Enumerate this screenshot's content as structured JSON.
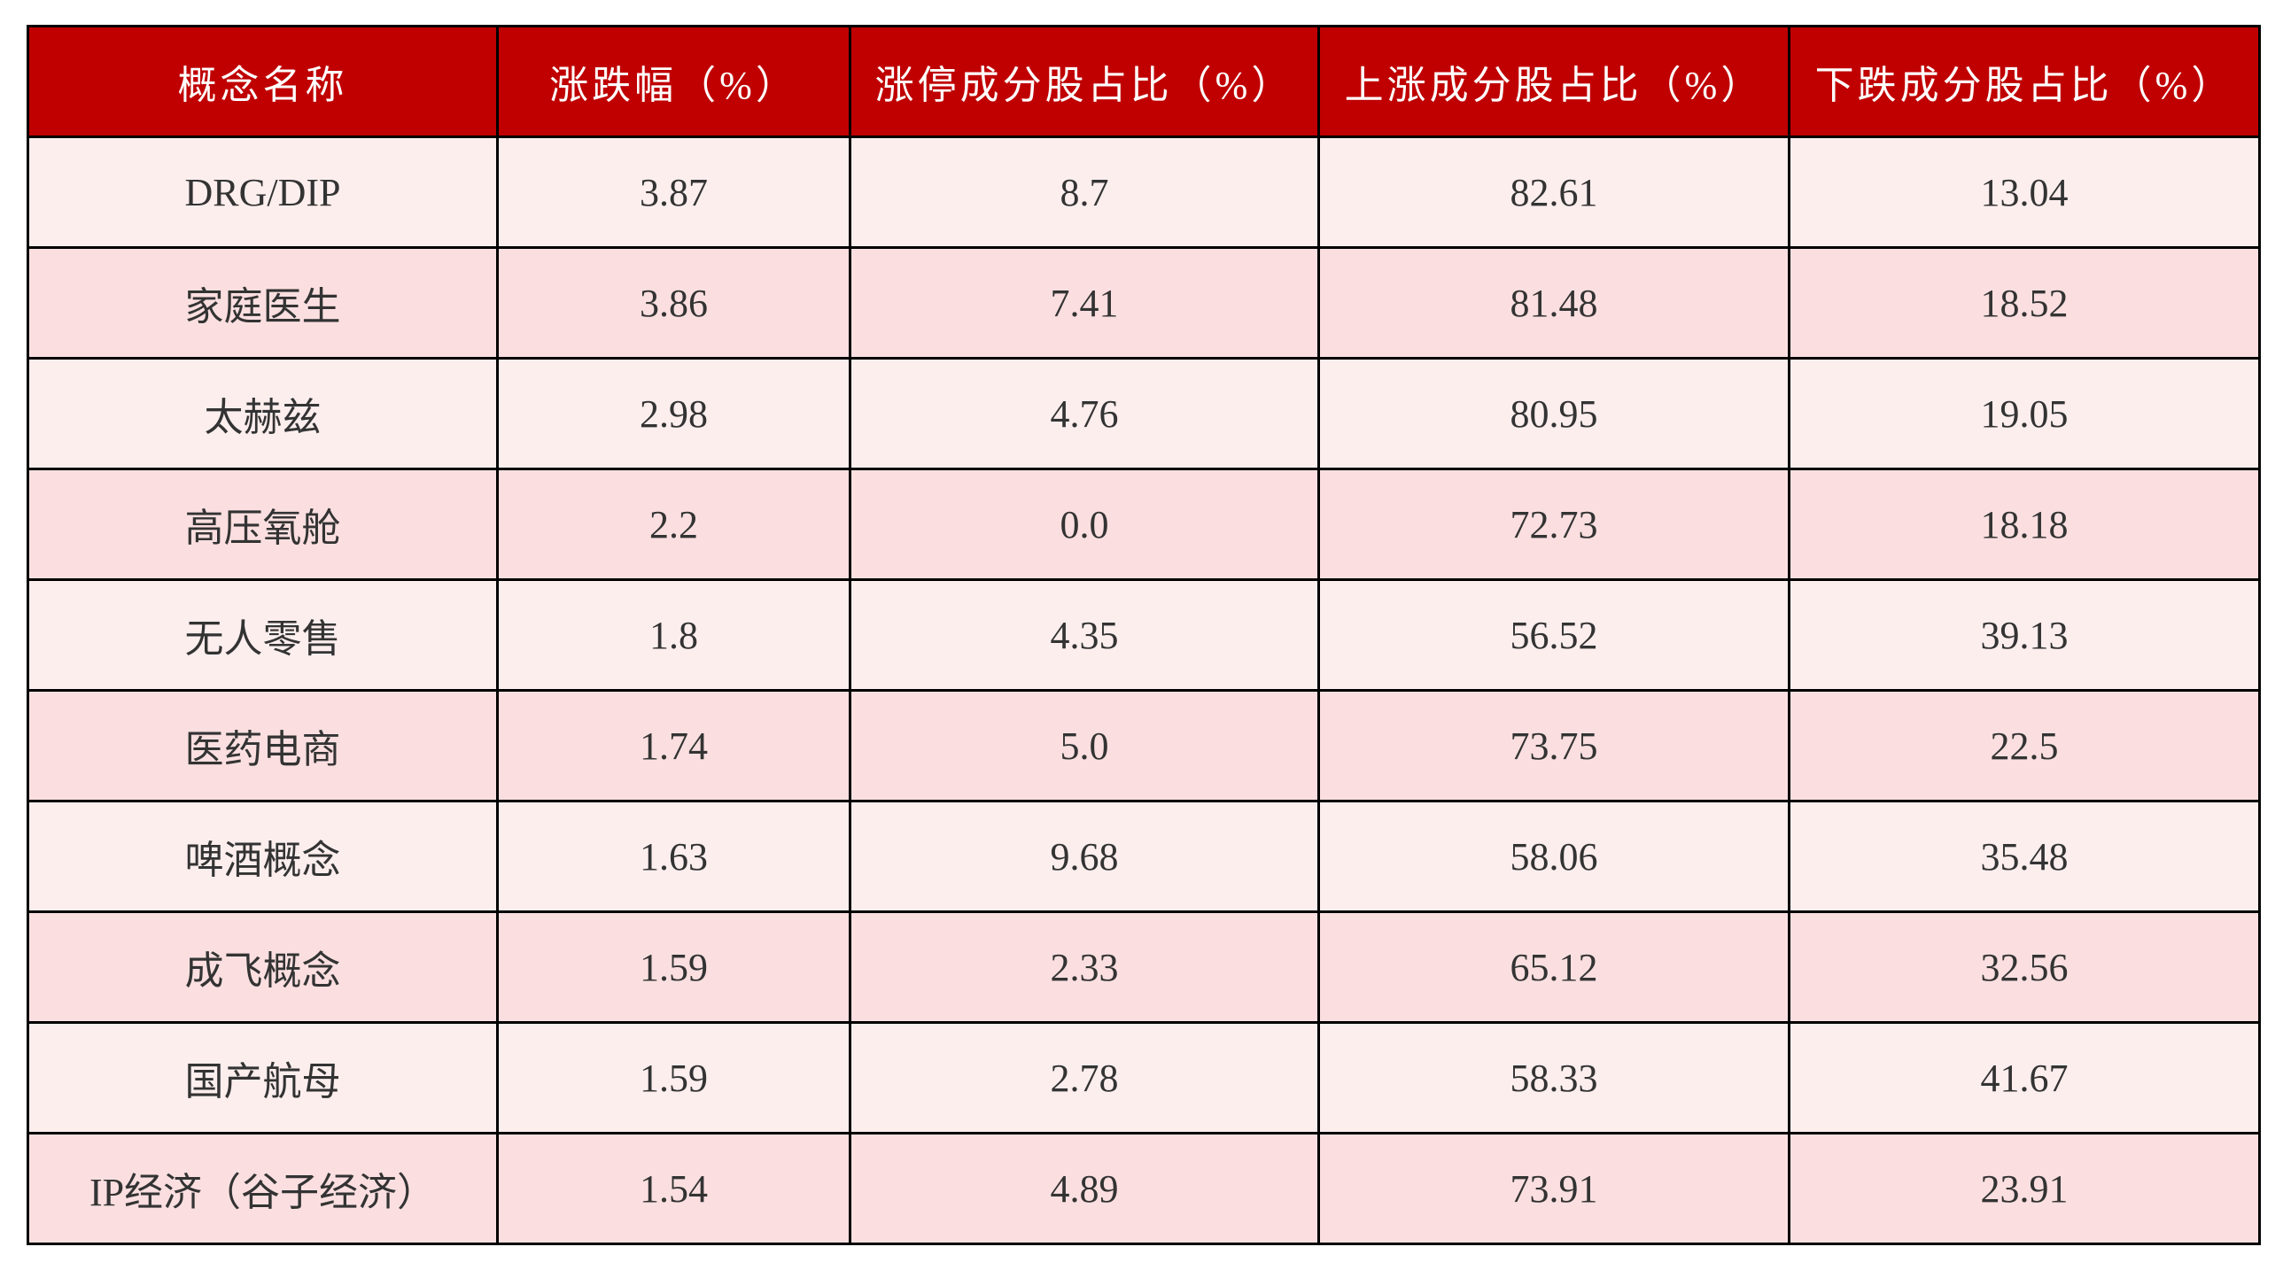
{
  "table": {
    "header": [
      "概念名称",
      "涨跌幅（%）",
      "涨停成分股占比（%）",
      "上涨成分股占比（%）",
      "下跌成分股占比（%）"
    ],
    "rows": [
      [
        "DRG/DIP",
        "3.87",
        "8.7",
        "82.61",
        "13.04"
      ],
      [
        "家庭医生",
        "3.86",
        "7.41",
        "81.48",
        "18.52"
      ],
      [
        "太赫兹",
        "2.98",
        "4.76",
        "80.95",
        "19.05"
      ],
      [
        "高压氧舱",
        "2.2",
        "0.0",
        "72.73",
        "18.18"
      ],
      [
        "无人零售",
        "1.8",
        "4.35",
        "56.52",
        "39.13"
      ],
      [
        "医药电商",
        "1.74",
        "5.0",
        "73.75",
        "22.5"
      ],
      [
        "啤酒概念",
        "1.63",
        "9.68",
        "58.06",
        "35.48"
      ],
      [
        "成飞概念",
        "1.59",
        "2.33",
        "65.12",
        "32.56"
      ],
      [
        "国产航母",
        "1.59",
        "2.78",
        "58.33",
        "41.67"
      ],
      [
        "IP经济（谷子经济）",
        "1.54",
        "4.89",
        "73.91",
        "23.91"
      ]
    ]
  }
}
